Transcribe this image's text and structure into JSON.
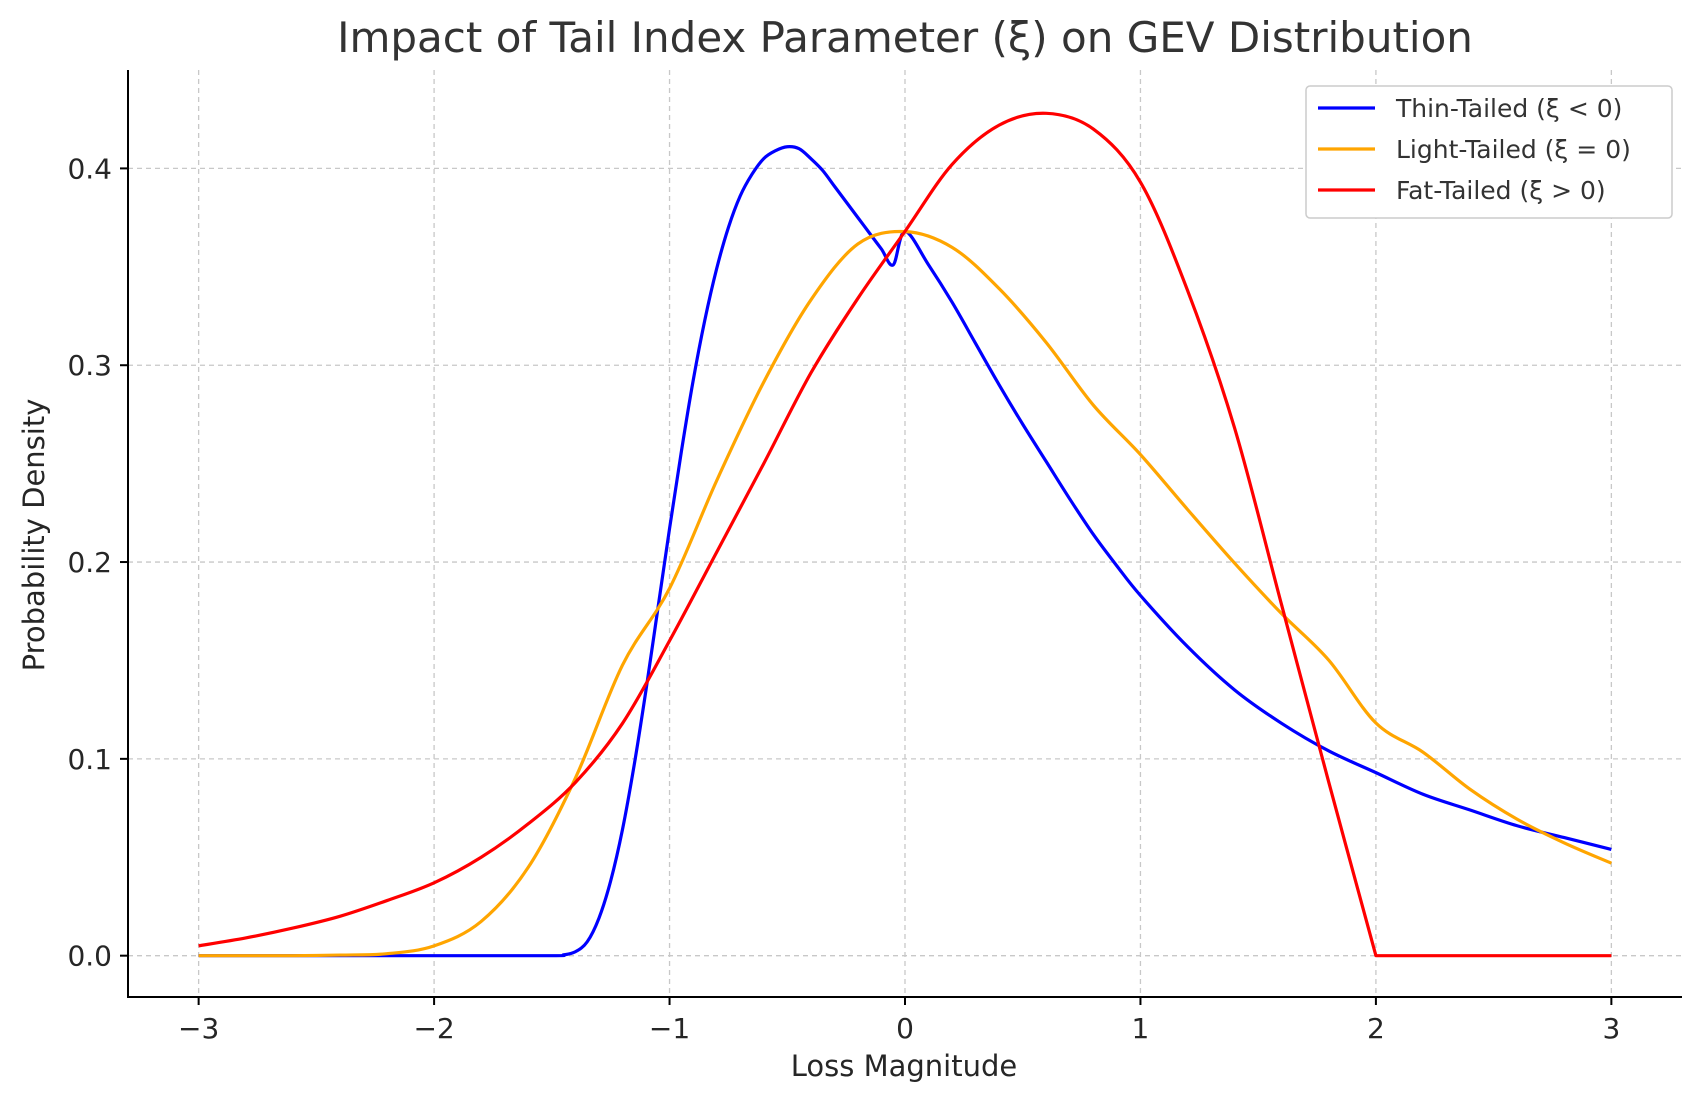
{
  "chart_data": {
    "type": "line",
    "title": "Impact of Tail Index Parameter (ξ) on GEV Distribution",
    "xlabel": "Loss Magnitude",
    "ylabel": "Probability Density",
    "xlim": [
      -3.3,
      3.3
    ],
    "ylim": [
      -0.021,
      0.45
    ],
    "grid": true,
    "legend_position": "top-right",
    "x_ticks": [
      {
        "value": -3,
        "label": "−3"
      },
      {
        "value": -2,
        "label": "−2"
      },
      {
        "value": -1,
        "label": "−1"
      },
      {
        "value": 0,
        "label": "0"
      },
      {
        "value": 1,
        "label": "1"
      },
      {
        "value": 2,
        "label": "2"
      },
      {
        "value": 3,
        "label": "3"
      }
    ],
    "y_ticks": [
      {
        "value": 0.0,
        "label": "0.0"
      },
      {
        "value": 0.1,
        "label": "0.1"
      },
      {
        "value": 0.2,
        "label": "0.2"
      },
      {
        "value": 0.3,
        "label": "0.3"
      },
      {
        "value": 0.4,
        "label": "0.4"
      }
    ],
    "series": [
      {
        "name": "Thin-Tailed (ξ < 0)",
        "color": "#0000ff",
        "x": [
          -3.0,
          -2.0,
          -1.5,
          -1.45,
          -1.4,
          -1.35,
          -1.3,
          -1.25,
          -1.2,
          -1.15,
          -1.1,
          -1.05,
          -1.0,
          -0.95,
          -0.9,
          -0.85,
          -0.8,
          -0.75,
          -0.7,
          -0.65,
          -0.6,
          -0.55,
          -0.5,
          -0.45,
          -0.4,
          -0.35,
          -0.3,
          -0.25,
          -0.2,
          -0.15,
          -0.1,
          -0.05,
          0.0,
          0.1,
          0.2,
          0.3,
          0.4,
          0.5,
          0.6,
          0.7,
          0.8,
          0.9,
          1.0,
          1.2,
          1.4,
          1.6,
          1.8,
          2.0,
          2.2,
          2.4,
          2.6,
          2.8,
          3.0
        ],
        "y": [
          0.0,
          0.0,
          0.0,
          0.0004,
          0.002,
          0.007,
          0.019,
          0.038,
          0.064,
          0.097,
          0.135,
          0.176,
          0.217,
          0.256,
          0.292,
          0.323,
          0.349,
          0.37,
          0.386,
          0.397,
          0.405,
          0.409,
          0.411,
          0.41,
          0.405,
          0.399,
          0.391,
          0.383,
          0.375,
          0.367,
          0.359,
          0.351,
          0.368,
          0.351,
          0.332,
          0.311,
          0.29,
          0.27,
          0.251,
          0.232,
          0.214,
          0.198,
          0.183,
          0.157,
          0.135,
          0.118,
          0.104,
          0.093,
          0.082,
          0.074,
          0.066,
          0.06,
          0.054
        ]
      },
      {
        "name": "Light-Tailed (ξ = 0)",
        "color": "#ffa500",
        "x": [
          -3.0,
          -2.6,
          -2.4,
          -2.2,
          -2.0,
          -1.8,
          -1.6,
          -1.4,
          -1.2,
          -1.0,
          -0.8,
          -0.6,
          -0.4,
          -0.2,
          0.0,
          0.2,
          0.4,
          0.6,
          0.8,
          1.0,
          1.2,
          1.4,
          1.6,
          1.8,
          2.0,
          2.2,
          2.4,
          2.6,
          2.8,
          3.0
        ],
        "y": [
          0.0,
          0.0,
          0.0003,
          0.001,
          0.005,
          0.0174,
          0.0449,
          0.0902,
          0.1476,
          0.1866,
          0.2413,
          0.2914,
          0.3331,
          0.3616,
          0.3679,
          0.3599,
          0.3389,
          0.3115,
          0.2797,
          0.2546,
          0.2267,
          0.1994,
          0.1737,
          0.1501,
          0.1182,
          0.1034,
          0.0845,
          0.0693,
          0.0573,
          0.047
        ]
      },
      {
        "name": "Fat-Tailed (ξ > 0)",
        "color": "#ff0000",
        "x": [
          -3.0,
          -2.8,
          -2.6,
          -2.4,
          -2.2,
          -2.0,
          -1.8,
          -1.6,
          -1.4,
          -1.2,
          -1.0,
          -0.8,
          -0.6,
          -0.4,
          -0.2,
          0.0,
          0.2,
          0.4,
          0.6,
          0.8,
          1.0,
          1.2,
          1.4,
          1.6,
          1.8,
          2.0,
          2.2,
          2.4,
          2.6,
          2.8,
          3.0
        ],
        "y": [
          0.005,
          0.009,
          0.014,
          0.02,
          0.028,
          0.037,
          0.05,
          0.067,
          0.088,
          0.118,
          0.16,
          0.205,
          0.25,
          0.296,
          0.334,
          0.368,
          0.402,
          0.422,
          0.428,
          0.42,
          0.393,
          0.338,
          0.268,
          0.178,
          0.088,
          0.0,
          0.0,
          0.0,
          0.0,
          0.0,
          0.0
        ]
      }
    ]
  }
}
